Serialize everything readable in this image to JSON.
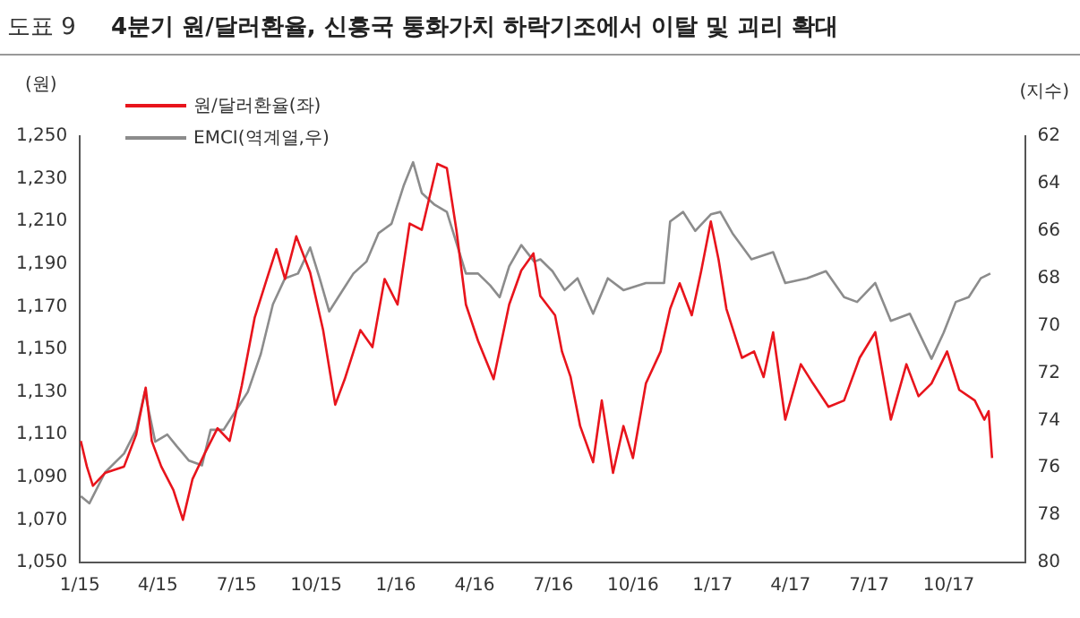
{
  "chart_data": {
    "type": "line",
    "title": "4분기 원/달러환율, 신흥국 통화가치 하락기조에서 이탈 및 괴리 확대",
    "annotations": [
      "도표 9"
    ],
    "ylabel": "(원)",
    "y2label": "(지수)",
    "xlim": [
      "2015-01-01",
      "2017-12-28"
    ],
    "xticks": [
      {
        "value": "2015-01-01",
        "label": "1/15"
      },
      {
        "value": "2015-04-01",
        "label": "4/15"
      },
      {
        "value": "2015-07-01",
        "label": "7/15"
      },
      {
        "value": "2015-10-01",
        "label": "10/15"
      },
      {
        "value": "2016-01-01",
        "label": "1/16"
      },
      {
        "value": "2016-04-01",
        "label": "4/16"
      },
      {
        "value": "2016-07-01",
        "label": "7/16"
      },
      {
        "value": "2016-10-01",
        "label": "10/16"
      },
      {
        "value": "2017-01-01",
        "label": "1/17"
      },
      {
        "value": "2017-04-01",
        "label": "4/17"
      },
      {
        "value": "2017-07-01",
        "label": "7/17"
      },
      {
        "value": "2017-10-01",
        "label": "10/17"
      }
    ],
    "ylim": [
      1050,
      1250
    ],
    "yticks": [
      {
        "value": 1050,
        "label": "1,050"
      },
      {
        "value": 1070,
        "label": "1,070"
      },
      {
        "value": 1090,
        "label": "1,090"
      },
      {
        "value": 1110,
        "label": "1,110"
      },
      {
        "value": 1130,
        "label": "1,130"
      },
      {
        "value": 1150,
        "label": "1,150"
      },
      {
        "value": 1170,
        "label": "1,170"
      },
      {
        "value": 1190,
        "label": "1,190"
      },
      {
        "value": 1210,
        "label": "1,210"
      },
      {
        "value": 1230,
        "label": "1,230"
      },
      {
        "value": 1250,
        "label": "1,250"
      }
    ],
    "y2lim": [
      80,
      62
    ],
    "y2ticks": [
      62,
      64,
      66,
      68,
      70,
      72,
      74,
      76,
      78,
      80
    ],
    "grid": false,
    "legend": "top left",
    "marker": "none",
    "line_style": "solid",
    "series": [
      {
        "name": "원/달러환율(좌)",
        "color": "#e8141c",
        "x": [
          "2015-01-02",
          "2015-01-09",
          "2015-01-16",
          "2015-01-30",
          "2015-02-21",
          "2015-03-07",
          "2015-03-18",
          "2015-03-25",
          "2015-04-05",
          "2015-04-19",
          "2015-04-30",
          "2015-05-11",
          "2015-05-25",
          "2015-06-09",
          "2015-06-23",
          "2015-07-07",
          "2015-07-22",
          "2015-08-05",
          "2015-08-16",
          "2015-08-26",
          "2015-09-08",
          "2015-09-24",
          "2015-10-09",
          "2015-10-23",
          "2015-11-03",
          "2015-11-21",
          "2015-12-05",
          "2015-12-19",
          "2016-01-03",
          "2016-01-17",
          "2016-01-31",
          "2016-02-18",
          "2016-02-29",
          "2016-03-11",
          "2016-03-22",
          "2016-04-05",
          "2016-04-23",
          "2016-05-11",
          "2016-05-25",
          "2016-06-08",
          "2016-06-16",
          "2016-07-03",
          "2016-07-11",
          "2016-07-21",
          "2016-08-01",
          "2016-08-16",
          "2016-08-26",
          "2016-09-08",
          "2016-09-20",
          "2016-10-01",
          "2016-10-16",
          "2016-11-02",
          "2016-11-13",
          "2016-11-24",
          "2016-12-08",
          "2016-12-19",
          "2016-12-30",
          "2017-01-08",
          "2017-01-17",
          "2017-02-04",
          "2017-02-18",
          "2017-03-01",
          "2017-03-12",
          "2017-03-26",
          "2017-04-13",
          "2017-04-27",
          "2017-05-15",
          "2017-06-02",
          "2017-06-20",
          "2017-07-08",
          "2017-07-26",
          "2017-08-13",
          "2017-08-27",
          "2017-09-11",
          "2017-09-29",
          "2017-10-13",
          "2017-10-31",
          "2017-11-11",
          "2017-11-16",
          "2017-11-20"
        ],
        "values": [
          1107,
          1095,
          1086,
          1092,
          1095,
          1110,
          1132,
          1107,
          1095,
          1084,
          1070,
          1089,
          1101,
          1113,
          1107,
          1133,
          1165,
          1183,
          1197,
          1183,
          1203,
          1186,
          1159,
          1124,
          1136,
          1159,
          1151,
          1183,
          1171,
          1209,
          1206,
          1237,
          1235,
          1206,
          1171,
          1154,
          1136,
          1171,
          1187,
          1195,
          1175,
          1166,
          1149,
          1137,
          1114,
          1097,
          1126,
          1092,
          1114,
          1099,
          1134,
          1149,
          1169,
          1181,
          1166,
          1187,
          1210,
          1192,
          1169,
          1146,
          1149,
          1137,
          1158,
          1117,
          1143,
          1134,
          1123,
          1126,
          1146,
          1158,
          1117,
          1143,
          1128,
          1134,
          1149,
          1131,
          1126,
          1117,
          1121,
          1099
        ]
      },
      {
        "name": "EMCI(역계열,우)",
        "color": "#8c8c8c",
        "axis": "y2",
        "x": [
          "2015-01-02",
          "2015-01-12",
          "2015-01-30",
          "2015-02-21",
          "2015-03-07",
          "2015-03-17",
          "2015-03-29",
          "2015-04-12",
          "2015-04-23",
          "2015-05-07",
          "2015-05-22",
          "2015-06-01",
          "2015-06-16",
          "2015-06-30",
          "2015-07-14",
          "2015-07-29",
          "2015-08-12",
          "2015-08-26",
          "2015-09-10",
          "2015-09-24",
          "2015-10-05",
          "2015-10-16",
          "2015-10-30",
          "2015-11-13",
          "2015-11-28",
          "2015-12-12",
          "2015-12-27",
          "2016-01-10",
          "2016-01-21",
          "2016-01-31",
          "2016-02-15",
          "2016-02-29",
          "2016-03-11",
          "2016-03-22",
          "2016-04-05",
          "2016-04-19",
          "2016-04-30",
          "2016-05-11",
          "2016-05-25",
          "2016-06-09",
          "2016-06-16",
          "2016-06-30",
          "2016-07-14",
          "2016-07-29",
          "2016-08-16",
          "2016-09-02",
          "2016-09-20",
          "2016-10-16",
          "2016-11-06",
          "2016-11-13",
          "2016-11-28",
          "2016-12-12",
          "2016-12-30",
          "2017-01-10",
          "2017-01-24",
          "2017-02-15",
          "2017-03-12",
          "2017-03-26",
          "2017-04-20",
          "2017-05-12",
          "2017-06-02",
          "2017-06-17",
          "2017-07-08",
          "2017-07-26",
          "2017-08-17",
          "2017-09-11",
          "2017-09-25",
          "2017-10-09",
          "2017-10-24",
          "2017-11-07",
          "2017-11-18"
        ],
        "values": [
          77.2,
          77.5,
          76.2,
          75.4,
          74.4,
          72.8,
          74.9,
          74.6,
          75.1,
          75.7,
          75.9,
          74.4,
          74.4,
          73.6,
          72.8,
          71.2,
          69.1,
          68.0,
          67.8,
          66.7,
          68.0,
          69.4,
          68.6,
          67.8,
          67.3,
          66.1,
          65.7,
          64.1,
          63.1,
          64.4,
          64.9,
          65.2,
          66.5,
          67.8,
          67.8,
          68.3,
          68.8,
          67.5,
          66.6,
          67.3,
          67.2,
          67.7,
          68.5,
          68.0,
          69.5,
          68.0,
          68.5,
          68.2,
          68.2,
          65.6,
          65.2,
          66.0,
          65.3,
          65.2,
          66.1,
          67.2,
          66.9,
          68.2,
          68.0,
          67.7,
          68.8,
          69.0,
          68.2,
          69.8,
          69.5,
          71.4,
          70.3,
          69.0,
          68.8,
          68.0,
          67.8
        ]
      }
    ]
  }
}
